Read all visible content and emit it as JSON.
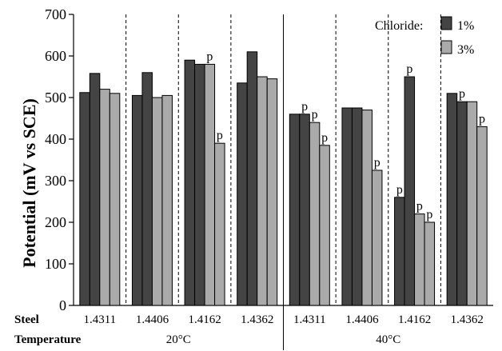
{
  "chart_data": {
    "type": "bar",
    "ylabel": "Potential (mV vs SCE)",
    "ylim": [
      0,
      700
    ],
    "yticks": [
      0,
      100,
      200,
      300,
      400,
      500,
      600,
      700
    ],
    "legend": {
      "title": "Chloride:",
      "entries": [
        {
          "label": "1%",
          "color": "#444444"
        },
        {
          "label": "3%",
          "color": "#aaaaaa"
        }
      ],
      "placement": "top-right"
    },
    "row_labels": {
      "steel": "Steel",
      "temperature": "Temperature"
    },
    "groups": [
      {
        "steel": "1.4311",
        "temperature": "20°C",
        "values": [
          512,
          558,
          520,
          510
        ],
        "labels": [
          "",
          "",
          "",
          ""
        ]
      },
      {
        "steel": "1.4406",
        "temperature": "20°C",
        "values": [
          505,
          560,
          500,
          505
        ],
        "labels": [
          "",
          "",
          "",
          ""
        ]
      },
      {
        "steel": "1.4162",
        "temperature": "20°C",
        "values": [
          590,
          580,
          580,
          390
        ],
        "labels": [
          "",
          "",
          "p",
          "p"
        ]
      },
      {
        "steel": "1.4362",
        "temperature": "20°C",
        "values": [
          535,
          610,
          550,
          545
        ],
        "labels": [
          "",
          "",
          "",
          ""
        ]
      },
      {
        "steel": "1.4311",
        "temperature": "40°C",
        "values": [
          460,
          460,
          440,
          385
        ],
        "labels": [
          "",
          "p",
          "p",
          "p"
        ]
      },
      {
        "steel": "1.4406",
        "temperature": "40°C",
        "values": [
          475,
          475,
          470,
          325
        ],
        "labels": [
          "",
          "",
          "",
          "p"
        ]
      },
      {
        "steel": "1.4162",
        "temperature": "40°C",
        "values": [
          260,
          550,
          220,
          200
        ],
        "labels": [
          "p",
          "p",
          "p",
          "p"
        ]
      },
      {
        "steel": "1.4362",
        "temperature": "40°C",
        "values": [
          510,
          490,
          490,
          430
        ],
        "labels": [
          "",
          "p",
          "",
          "p"
        ]
      }
    ],
    "temperature_labels": [
      "20°C",
      "40°C"
    ],
    "bar_colors": [
      "#444444",
      "#444444",
      "#aaaaaa",
      "#aaaaaa"
    ]
  }
}
